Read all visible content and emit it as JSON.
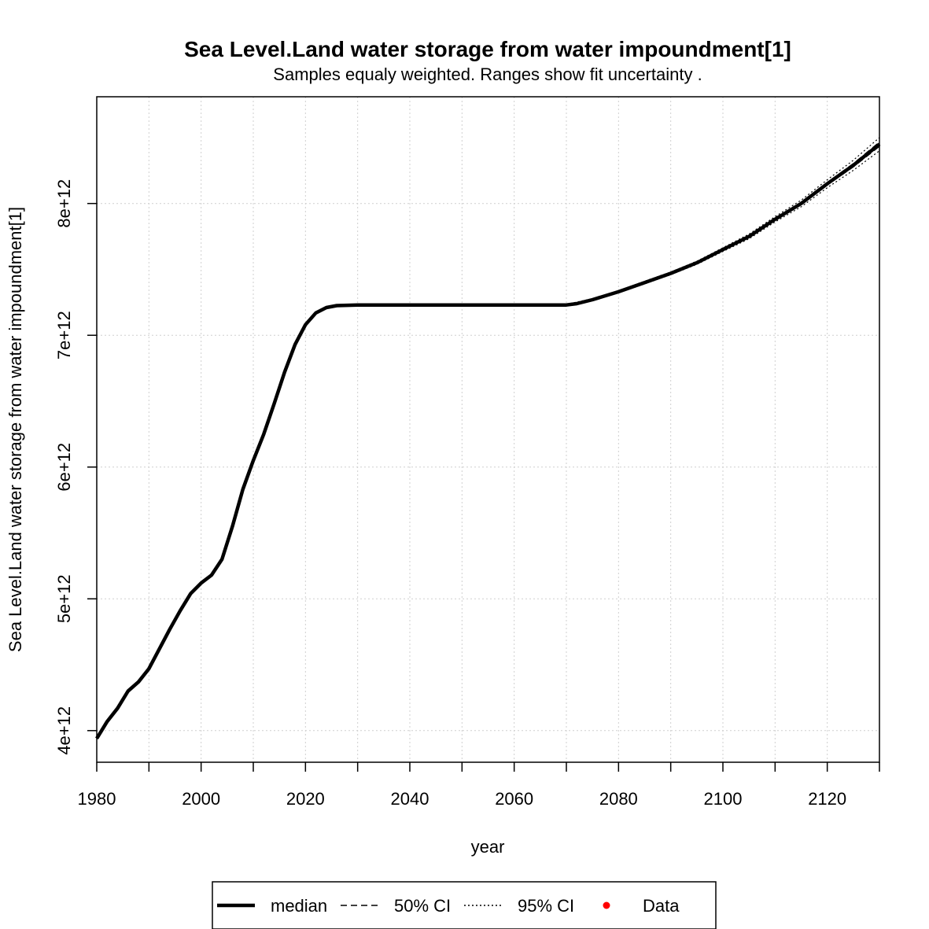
{
  "chart_data": {
    "type": "line",
    "title": "Sea Level.Land water storage from water impoundment[1]",
    "subtitle": "Samples equaly weighted. Ranges show  fit uncertainty .",
    "xlabel": "year",
    "ylabel": "Sea Level.Land water storage from water impoundment[1]",
    "xlim": [
      1980,
      2130
    ],
    "ylim": [
      3760000000000.0,
      8810000000000.0
    ],
    "x_ticks": [
      1980,
      2000,
      2020,
      2040,
      2060,
      2080,
      2100,
      2120
    ],
    "x_tick_labels": [
      "1980",
      "2000",
      "2020",
      "2040",
      "2060",
      "2080",
      "2100",
      "2120"
    ],
    "y_ticks": [
      4000000000000.0,
      5000000000000.0,
      6000000000000.0,
      7000000000000.0,
      8000000000000.0
    ],
    "y_tick_labels": [
      "4e+12",
      "5e+12",
      "6e+12",
      "7e+12",
      "8e+12"
    ],
    "grid": true,
    "legend_position": "bottom",
    "legend": [
      {
        "label": "median",
        "style": "solid-thick",
        "color": "#000000"
      },
      {
        "label": "50% CI",
        "style": "dashed",
        "color": "#000000"
      },
      {
        "label": "95% CI",
        "style": "dotted",
        "color": "#000000"
      },
      {
        "label": "Data",
        "style": "point",
        "color": "#ff0000"
      }
    ],
    "series": [
      {
        "name": "median",
        "x": [
          1980,
          1982,
          1984,
          1986,
          1988,
          1990,
          1992,
          1994,
          1996,
          1998,
          2000,
          2002,
          2004,
          2006,
          2008,
          2010,
          2012,
          2014,
          2016,
          2018,
          2020,
          2022,
          2024,
          2026,
          2030,
          2040,
          2050,
          2060,
          2070,
          2072,
          2075,
          2080,
          2085,
          2090,
          2095,
          2100,
          2105,
          2110,
          2115,
          2120,
          2125,
          2130
        ],
        "y": [
          3940000000000.0,
          4070000000000.0,
          4170000000000.0,
          4300000000000.0,
          4370000000000.0,
          4470000000000.0,
          4620000000000.0,
          4770000000000.0,
          4910000000000.0,
          5040000000000.0,
          5120000000000.0,
          5180000000000.0,
          5300000000000.0,
          5550000000000.0,
          5830000000000.0,
          6050000000000.0,
          6250000000000.0,
          6480000000000.0,
          6720000000000.0,
          6930000000000.0,
          7080000000000.0,
          7170000000000.0,
          7210000000000.0,
          7225000000000.0,
          7230000000000.0,
          7230000000000.0,
          7230000000000.0,
          7230000000000.0,
          7230000000000.0,
          7240000000000.0,
          7270000000000.0,
          7330000000000.0,
          7400000000000.0,
          7470000000000.0,
          7550000000000.0,
          7650000000000.0,
          7750000000000.0,
          7880000000000.0,
          8000000000000.0,
          8150000000000.0,
          8290000000000.0,
          8450000000000.0
        ]
      },
      {
        "name": "50% CI",
        "x": [
          2070,
          2075,
          2080,
          2085,
          2090,
          2095,
          2100,
          2105,
          2110,
          2115,
          2120,
          2125,
          2130
        ],
        "y_low": [
          7230000000000.0,
          7268000000000.0,
          7328000000000.0,
          7397000000000.0,
          7467000000000.0,
          7547000000000.0,
          7646000000000.0,
          7745000000000.0,
          7874000000000.0,
          7992000000000.0,
          8140000000000.0,
          8277000000000.0,
          8433000000000.0
        ],
        "y_high": [
          7230000000000.0,
          7272000000000.0,
          7332000000000.0,
          7403000000000.0,
          7473000000000.0,
          7553000000000.0,
          7654000000000.0,
          7755000000000.0,
          7886000000000.0,
          8008000000000.0,
          8160000000000.0,
          8303000000000.0,
          8467000000000.0
        ]
      },
      {
        "name": "95% CI",
        "x": [
          2070,
          2075,
          2080,
          2085,
          2090,
          2095,
          2100,
          2105,
          2110,
          2115,
          2120,
          2125,
          2130
        ],
        "y_low": [
          7225000000000.0,
          7262000000000.0,
          7322000000000.0,
          7390000000000.0,
          7460000000000.0,
          7538000000000.0,
          7636000000000.0,
          7732000000000.0,
          7860000000000.0,
          7975000000000.0,
          8120000000000.0,
          8252000000000.0,
          8400000000000.0
        ],
        "y_high": [
          7235000000000.0,
          7278000000000.0,
          7338000000000.0,
          7410000000000.0,
          7480000000000.0,
          7562000000000.0,
          7664000000000.0,
          7768000000000.0,
          7900000000000.0,
          8025000000000.0,
          8180000000000.0,
          8328000000000.0,
          8500000000000.0
        ]
      }
    ]
  }
}
